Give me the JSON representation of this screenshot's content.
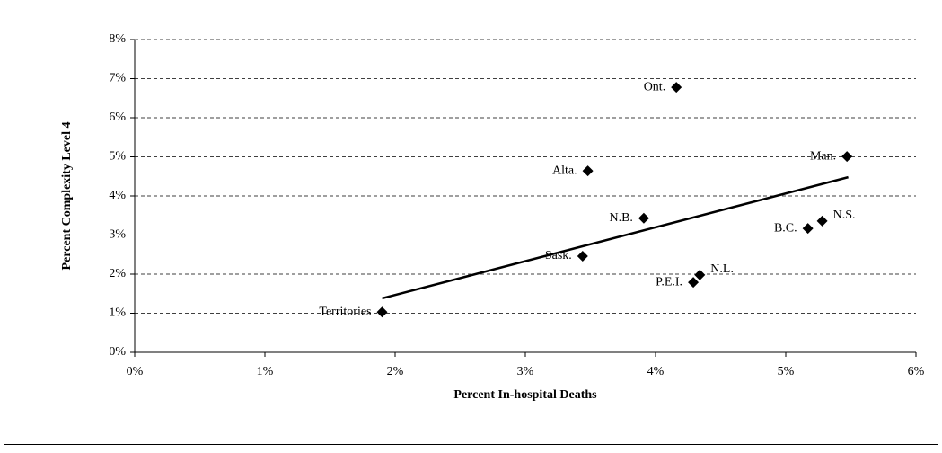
{
  "chart_data": {
    "type": "scatter",
    "xlabel": "Percent In-hospital Deaths",
    "ylabel": "Percent Complexity Level 4",
    "x": [
      1.9,
      3.44,
      3.48,
      3.91,
      4.16,
      4.29,
      4.34,
      5.17,
      5.28,
      5.47
    ],
    "values": [
      1.03,
      2.46,
      4.64,
      3.43,
      6.78,
      1.79,
      1.98,
      3.17,
      3.36,
      5.01
    ],
    "point_labels": [
      "Territories",
      "Sask.",
      "Alta.",
      "N.B.",
      "Ont.",
      "P.E.I.",
      "N.L.",
      "B.C.",
      "N.S.",
      "Man."
    ],
    "color": "#000000",
    "trendline": {
      "x": [
        1.9,
        5.48
      ],
      "values": [
        1.38,
        4.48
      ]
    },
    "xlim": [
      0,
      6
    ],
    "xticks": [
      {
        "value": 0,
        "label": "0%"
      },
      {
        "value": 1,
        "label": "1%"
      },
      {
        "value": 2,
        "label": "2%"
      },
      {
        "value": 3,
        "label": "3%"
      },
      {
        "value": 4,
        "label": "4%"
      },
      {
        "value": 5,
        "label": "5%"
      },
      {
        "value": 6,
        "label": "6%"
      }
    ],
    "ylim": [
      0,
      8
    ],
    "yticks": [
      {
        "value": 0,
        "label": "0%"
      },
      {
        "value": 1,
        "label": "1%"
      },
      {
        "value": 2,
        "label": "2%"
      },
      {
        "value": 3,
        "label": "3%"
      },
      {
        "value": 4,
        "label": "4%"
      },
      {
        "value": 5,
        "label": "5%"
      },
      {
        "value": 6,
        "label": "6%"
      },
      {
        "value": 7,
        "label": "7%"
      },
      {
        "value": 8,
        "label": "8%"
      }
    ],
    "grid": true
  }
}
